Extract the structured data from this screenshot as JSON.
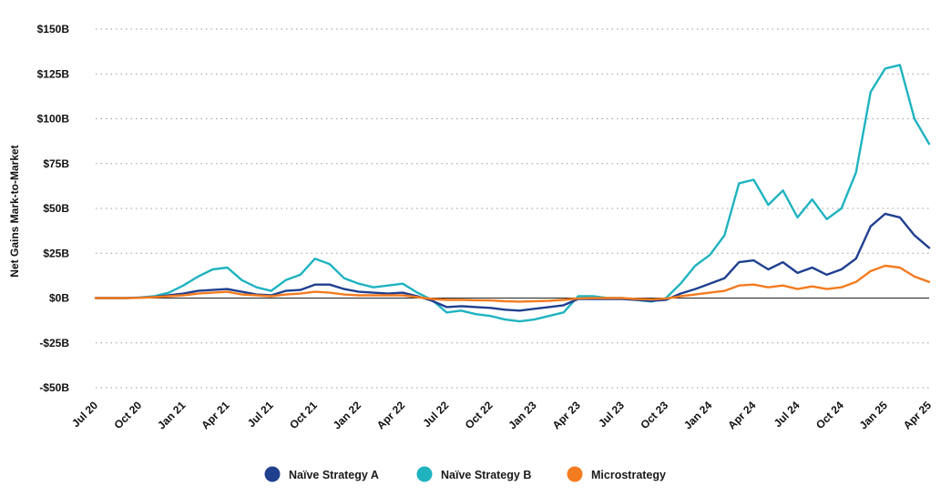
{
  "chart_data": {
    "type": "line",
    "title": "",
    "xlabel": "",
    "ylabel": "Net Gains Mark-to-Market",
    "ylim": [
      -50,
      150
    ],
    "yticks": [
      {
        "value": 150,
        "label": "$150B"
      },
      {
        "value": 125,
        "label": "$125B"
      },
      {
        "value": 100,
        "label": "$100B"
      },
      {
        "value": 75,
        "label": "$75B"
      },
      {
        "value": 50,
        "label": "$50B"
      },
      {
        "value": 25,
        "label": "$25B"
      },
      {
        "value": 0,
        "label": "$0B"
      },
      {
        "value": -25,
        "label": "-$25B"
      },
      {
        "value": -50,
        "label": "-$50B"
      }
    ],
    "xticks": [
      "Jul 20",
      "Oct 20",
      "Jan 21",
      "Apr 21",
      "Jul 21",
      "Oct 21",
      "Jan 22",
      "Apr 22",
      "Jul 22",
      "Oct 22",
      "Jan 23",
      "Apr 23",
      "Jul 23",
      "Oct 23",
      "Jan 24",
      "Apr 24",
      "Jul 24",
      "Oct 24",
      "Jan 25",
      "Apr 25"
    ],
    "grid": true,
    "legend_position": "bottom",
    "series": [
      {
        "name": "Naïve Strategy A",
        "color": "#1f3f8f",
        "points": [
          [
            "Jul 20",
            0
          ],
          [
            "Aug 20",
            0
          ],
          [
            "Sep 20",
            0
          ],
          [
            "Oct 20",
            0.2
          ],
          [
            "Nov 20",
            0.6
          ],
          [
            "Dec 20",
            1.5
          ],
          [
            "Jan 21",
            2.5
          ],
          [
            "Feb 21",
            4
          ],
          [
            "Mar 21",
            4.5
          ],
          [
            "Apr 21",
            5
          ],
          [
            "May 21",
            3.5
          ],
          [
            "Jun 21",
            2
          ],
          [
            "Jul 21",
            1.5
          ],
          [
            "Aug 21",
            4
          ],
          [
            "Sep 21",
            4.5
          ],
          [
            "Oct 21",
            7.5
          ],
          [
            "Nov 21",
            7.5
          ],
          [
            "Dec 21",
            5
          ],
          [
            "Jan 22",
            3.5
          ],
          [
            "Feb 22",
            3
          ],
          [
            "Mar 22",
            2.5
          ],
          [
            "Apr 22",
            3
          ],
          [
            "May 22",
            1
          ],
          [
            "Jun 22",
            -1.5
          ],
          [
            "Jul 22",
            -5
          ],
          [
            "Aug 22",
            -4.5
          ],
          [
            "Sep 22",
            -5
          ],
          [
            "Oct 22",
            -5.5
          ],
          [
            "Nov 22",
            -6.5
          ],
          [
            "Dec 22",
            -7
          ],
          [
            "Jan 23",
            -6
          ],
          [
            "Feb 23",
            -5
          ],
          [
            "Mar 23",
            -4
          ],
          [
            "Apr 23",
            -0.5
          ],
          [
            "May 23",
            -0.5
          ],
          [
            "Jun 23",
            -0.5
          ],
          [
            "Jul 23",
            -0.5
          ],
          [
            "Aug 23",
            -1
          ],
          [
            "Sep 23",
            -1.5
          ],
          [
            "Oct 23",
            -1
          ],
          [
            "Nov 23",
            2.5
          ],
          [
            "Dec 23",
            5
          ],
          [
            "Jan 24",
            8
          ],
          [
            "Feb 24",
            11
          ],
          [
            "Mar 24",
            20
          ],
          [
            "Apr 24",
            21
          ],
          [
            "May 24",
            16
          ],
          [
            "Jun 24",
            20
          ],
          [
            "Jul 24",
            14
          ],
          [
            "Aug 24",
            17
          ],
          [
            "Sep 24",
            13
          ],
          [
            "Oct 24",
            16
          ],
          [
            "Nov 24",
            22
          ],
          [
            "Dec 24",
            40
          ],
          [
            "Jan 25",
            47
          ],
          [
            "Feb 25",
            45
          ],
          [
            "Mar 25",
            35
          ],
          [
            "Apr 25",
            28
          ]
        ]
      },
      {
        "name": "Naïve Strategy B",
        "color": "#1fb3c0",
        "points": [
          [
            "Jul 20",
            0
          ],
          [
            "Aug 20",
            0
          ],
          [
            "Sep 20",
            0
          ],
          [
            "Oct 20",
            0.3
          ],
          [
            "Nov 20",
            1
          ],
          [
            "Dec 20",
            3
          ],
          [
            "Jan 21",
            7
          ],
          [
            "Feb 21",
            12
          ],
          [
            "Mar 21",
            16
          ],
          [
            "Apr 21",
            17
          ],
          [
            "May 21",
            10
          ],
          [
            "Jun 21",
            6
          ],
          [
            "Jul 21",
            4
          ],
          [
            "Aug 21",
            10
          ],
          [
            "Sep 21",
            13
          ],
          [
            "Oct 21",
            22
          ],
          [
            "Nov 21",
            19
          ],
          [
            "Dec 21",
            11
          ],
          [
            "Jan 22",
            8
          ],
          [
            "Feb 22",
            6
          ],
          [
            "Mar 22",
            7
          ],
          [
            "Apr 22",
            8
          ],
          [
            "May 22",
            3
          ],
          [
            "Jun 22",
            -1
          ],
          [
            "Jul 22",
            -8
          ],
          [
            "Aug 22",
            -7
          ],
          [
            "Sep 22",
            -9
          ],
          [
            "Oct 22",
            -10
          ],
          [
            "Nov 22",
            -12
          ],
          [
            "Dec 22",
            -13
          ],
          [
            "Jan 23",
            -12
          ],
          [
            "Feb 23",
            -10
          ],
          [
            "Mar 23",
            -8
          ],
          [
            "Apr 23",
            1
          ],
          [
            "May 23",
            1
          ],
          [
            "Jun 23",
            0
          ],
          [
            "Jul 23",
            0
          ],
          [
            "Aug 23",
            -1
          ],
          [
            "Sep 23",
            -2
          ],
          [
            "Oct 23",
            0
          ],
          [
            "Nov 23",
            8
          ],
          [
            "Dec 23",
            18
          ],
          [
            "Jan 24",
            24
          ],
          [
            "Feb 24",
            35
          ],
          [
            "Mar 24",
            64
          ],
          [
            "Apr 24",
            66
          ],
          [
            "May 24",
            52
          ],
          [
            "Jun 24",
            60
          ],
          [
            "Jul 24",
            45
          ],
          [
            "Aug 24",
            55
          ],
          [
            "Sep 24",
            44
          ],
          [
            "Oct 24",
            50
          ],
          [
            "Nov 24",
            70
          ],
          [
            "Dec 24",
            115
          ],
          [
            "Jan 25",
            128
          ],
          [
            "Feb 25",
            130
          ],
          [
            "Mar 25",
            100
          ],
          [
            "Apr 25",
            86
          ]
        ]
      },
      {
        "name": "Microstrategy",
        "color": "#f47b20",
        "points": [
          [
            "Jul 20",
            0
          ],
          [
            "Aug 20",
            0
          ],
          [
            "Sep 20",
            0
          ],
          [
            "Oct 20",
            0.1
          ],
          [
            "Nov 20",
            0.5
          ],
          [
            "Dec 20",
            1
          ],
          [
            "Jan 21",
            1.5
          ],
          [
            "Feb 21",
            2.5
          ],
          [
            "Mar 21",
            3
          ],
          [
            "Apr 21",
            3.5
          ],
          [
            "May 21",
            2
          ],
          [
            "Jun 21",
            1.5
          ],
          [
            "Jul 21",
            1
          ],
          [
            "Aug 21",
            2
          ],
          [
            "Sep 21",
            2.5
          ],
          [
            "Oct 21",
            3.5
          ],
          [
            "Nov 21",
            3
          ],
          [
            "Dec 21",
            2
          ],
          [
            "Jan 22",
            1.5
          ],
          [
            "Feb 22",
            1.5
          ],
          [
            "Mar 22",
            1.5
          ],
          [
            "Apr 22",
            1.5
          ],
          [
            "May 22",
            0.5
          ],
          [
            "Jun 22",
            -0.5
          ],
          [
            "Jul 22",
            -1
          ],
          [
            "Aug 22",
            -1
          ],
          [
            "Sep 22",
            -1.2
          ],
          [
            "Oct 22",
            -1.3
          ],
          [
            "Nov 22",
            -1.8
          ],
          [
            "Dec 22",
            -2
          ],
          [
            "Jan 23",
            -1.8
          ],
          [
            "Feb 23",
            -1.5
          ],
          [
            "Mar 23",
            -1
          ],
          [
            "Apr 23",
            -0.2
          ],
          [
            "May 23",
            0
          ],
          [
            "Jun 23",
            0
          ],
          [
            "Jul 23",
            0
          ],
          [
            "Aug 23",
            -0.5
          ],
          [
            "Sep 23",
            -0.8
          ],
          [
            "Oct 23",
            -0.3
          ],
          [
            "Nov 23",
            1
          ],
          [
            "Dec 23",
            2
          ],
          [
            "Jan 24",
            3
          ],
          [
            "Feb 24",
            4
          ],
          [
            "Mar 24",
            7
          ],
          [
            "Apr 24",
            7.5
          ],
          [
            "May 24",
            6
          ],
          [
            "Jun 24",
            7
          ],
          [
            "Jul 24",
            5
          ],
          [
            "Aug 24",
            6.5
          ],
          [
            "Sep 24",
            5
          ],
          [
            "Oct 24",
            6
          ],
          [
            "Nov 24",
            9
          ],
          [
            "Dec 24",
            15
          ],
          [
            "Jan 25",
            18
          ],
          [
            "Feb 25",
            17
          ],
          [
            "Mar 25",
            12
          ],
          [
            "Apr 25",
            9
          ]
        ]
      }
    ]
  }
}
